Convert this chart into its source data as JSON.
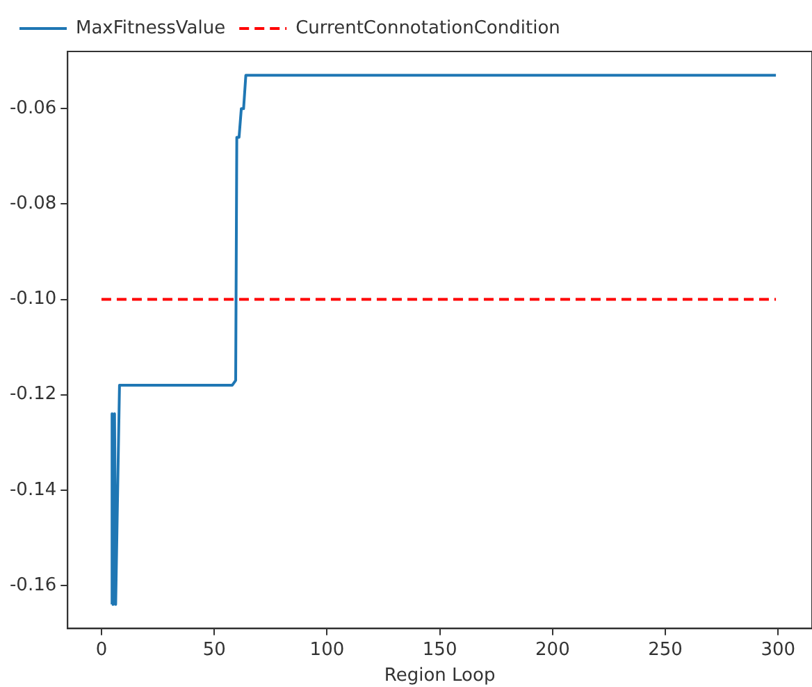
{
  "chart_data": {
    "type": "line",
    "xlabel": "Region Loop",
    "xlim": [
      -15,
      315
    ],
    "xticks": [
      0,
      50,
      100,
      150,
      200,
      250,
      300
    ],
    "ylim": [
      -0.169,
      -0.048
    ],
    "yticks": [
      -0.06,
      -0.08,
      {
        "value": -0.1,
        "label": "-0.10"
      },
      -0.12,
      -0.14,
      -0.16
    ],
    "legend": "top left",
    "grid": false,
    "marker": "none",
    "series": [
      {
        "name": "MaxFitnessValue",
        "color": "#1f77b4",
        "line_style": "solid",
        "x": [
          4.6,
          4.7,
          5.2,
          5.8,
          6.3,
          8,
          58,
          59.5,
          60,
          61,
          62,
          63,
          64,
          299
        ],
        "values": [
          -0.164,
          -0.124,
          -0.164,
          -0.124,
          -0.164,
          -0.118,
          -0.118,
          -0.117,
          -0.066,
          -0.066,
          -0.06,
          -0.06,
          -0.053,
          -0.053
        ]
      },
      {
        "name": "CurrentConnotationCondition",
        "color": "#ff0000",
        "line_style": "dashed",
        "x": [
          0,
          299
        ],
        "values": [
          -0.1,
          -0.1
        ]
      }
    ]
  }
}
